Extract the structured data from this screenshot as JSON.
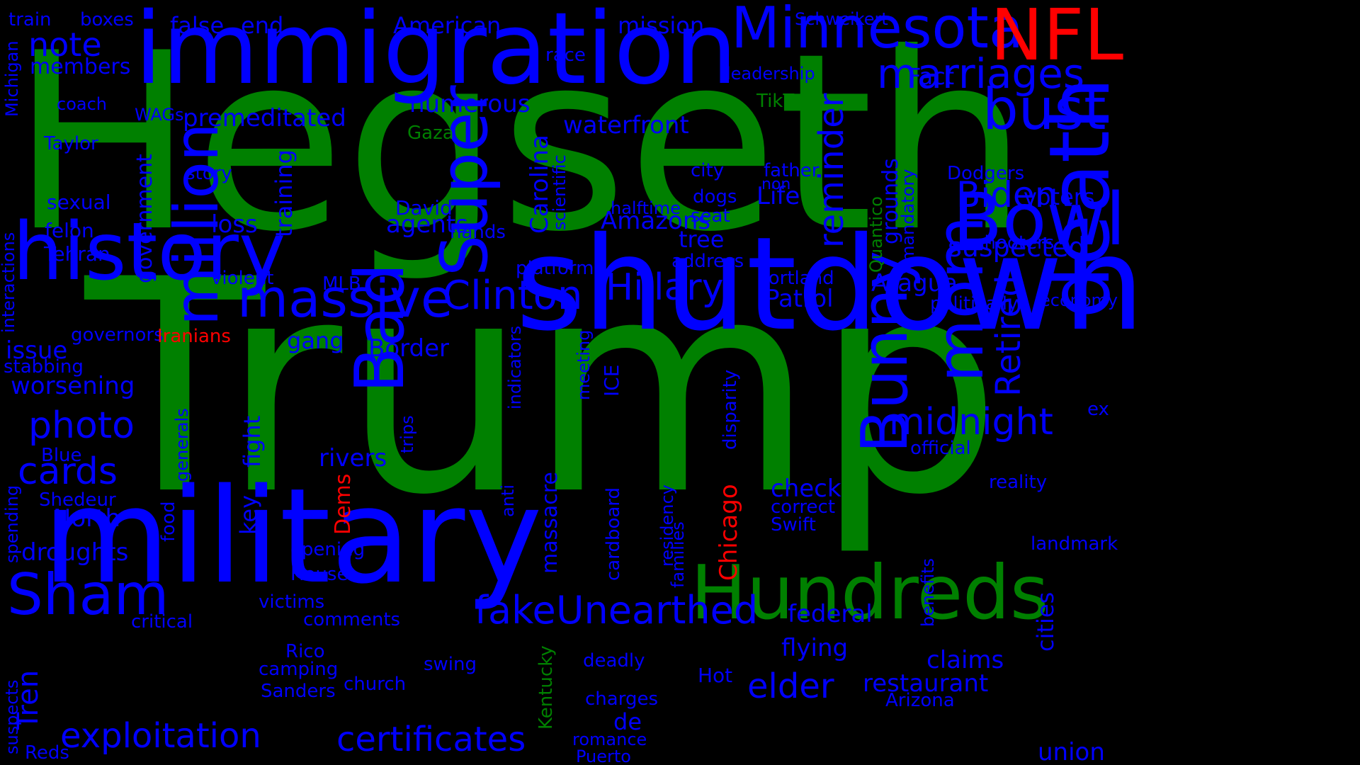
{
  "colors": {
    "background": "#000000",
    "blue": "#0000ff",
    "green": "#008000",
    "red": "#ff0000"
  },
  "words": [
    {
      "id": "word-hegseth",
      "text": "Hegseth",
      "color": "green"
    },
    {
      "id": "word-trump",
      "text": "Trump",
      "color": "green"
    },
    {
      "id": "word-shutdown",
      "text": "shutdown",
      "color": "blue"
    },
    {
      "id": "word-military",
      "text": "military",
      "color": "blue"
    },
    {
      "id": "word-immigration",
      "text": "immigration",
      "color": "blue"
    },
    {
      "id": "word-history",
      "text": "history",
      "color": "blue"
    },
    {
      "id": "word-hundreds",
      "text": "Hundreds",
      "color": "green"
    },
    {
      "id": "word-death",
      "text": "death",
      "color": "blue"
    },
    {
      "id": "word-minnesota",
      "text": "Minnesota",
      "color": "blue"
    },
    {
      "id": "word-nfl",
      "text": "NFL",
      "color": "red"
    },
    {
      "id": "word-bowl",
      "text": "Bowl",
      "color": "blue"
    },
    {
      "id": "word-bust",
      "text": "bust",
      "color": "blue"
    },
    {
      "id": "word-marriages",
      "text": "marriages",
      "color": "blue"
    },
    {
      "id": "word-massive",
      "text": "massive",
      "color": "blue"
    },
    {
      "id": "word-million",
      "text": "million",
      "color": "blue"
    },
    {
      "id": "word-super",
      "text": "Super",
      "color": "blue"
    },
    {
      "id": "word-bad",
      "text": "Bad",
      "color": "blue"
    },
    {
      "id": "word-bunny",
      "text": "Bunny",
      "color": "blue"
    },
    {
      "id": "word-mom",
      "text": "mom",
      "color": "blue"
    },
    {
      "id": "word-sham",
      "text": "Sham",
      "color": "blue"
    },
    {
      "id": "word-clinton",
      "text": "Clinton",
      "color": "blue"
    },
    {
      "id": "word-hillary",
      "text": "Hillary",
      "color": "blue"
    },
    {
      "id": "word-biden",
      "text": "Biden",
      "color": "blue"
    },
    {
      "id": "word-photo",
      "text": "photo",
      "color": "blue"
    },
    {
      "id": "word-cards",
      "text": "cards",
      "color": "blue"
    },
    {
      "id": "word-fake",
      "text": "fake",
      "color": "blue"
    },
    {
      "id": "word-unearthed",
      "text": "Unearthed",
      "color": "blue"
    },
    {
      "id": "word-midnight",
      "text": "midnight",
      "color": "blue"
    },
    {
      "id": "word-exploitation",
      "text": "exploitation",
      "color": "blue"
    },
    {
      "id": "word-certificates",
      "text": "certificates",
      "color": "blue"
    },
    {
      "id": "word-elder",
      "text": "elder",
      "color": "blue"
    },
    {
      "id": "word-retired",
      "text": "Retired",
      "color": "blue"
    },
    {
      "id": "word-reminder",
      "text": "reminder",
      "color": "blue"
    },
    {
      "id": "word-note",
      "text": "note",
      "color": "blue"
    },
    {
      "id": "word-suspected",
      "text": "suspected",
      "color": "blue"
    },
    {
      "id": "word-voters",
      "text": "voters",
      "color": "blue"
    },
    {
      "id": "word-carolina",
      "text": "Carolina",
      "color": "blue"
    },
    {
      "id": "word-agents",
      "text": "agents",
      "color": "blue"
    },
    {
      "id": "word-premeditated",
      "text": "premeditated",
      "color": "blue"
    },
    {
      "id": "word-numerous",
      "text": "numerous",
      "color": "blue"
    },
    {
      "id": "word-waterfront",
      "text": "waterfront",
      "color": "blue"
    },
    {
      "id": "word-mission",
      "text": "mission",
      "color": "blue"
    },
    {
      "id": "word-american",
      "text": "American",
      "color": "blue"
    },
    {
      "id": "word-false",
      "text": "false",
      "color": "blue"
    },
    {
      "id": "word-end",
      "text": "end",
      "color": "blue"
    },
    {
      "id": "word-train",
      "text": "train",
      "color": "blue"
    },
    {
      "id": "word-boxes",
      "text": "boxes",
      "color": "blue"
    },
    {
      "id": "word-schweikert",
      "text": "Schweikert",
      "color": "blue"
    },
    {
      "id": "word-leadership",
      "text": "leadership",
      "color": "blue"
    },
    {
      "id": "word-fact",
      "text": "Fact",
      "color": "blue"
    },
    {
      "id": "word-race",
      "text": "race",
      "color": "blue"
    },
    {
      "id": "word-members",
      "text": "members",
      "color": "blue"
    },
    {
      "id": "word-michigan",
      "text": "Michigan",
      "color": "blue"
    },
    {
      "id": "word-coach",
      "text": "coach",
      "color": "blue"
    },
    {
      "id": "word-wags",
      "text": "WAGs",
      "color": "blue"
    },
    {
      "id": "word-tiktok",
      "text": "TikTok",
      "color": "green"
    },
    {
      "id": "word-gaza",
      "text": "Gaza",
      "color": "green"
    },
    {
      "id": "word-taylor",
      "text": "Taylor",
      "color": "blue"
    },
    {
      "id": "word-government",
      "text": "government",
      "color": "blue"
    },
    {
      "id": "word-training",
      "text": "training",
      "color": "blue"
    },
    {
      "id": "word-story",
      "text": "story",
      "color": "blue"
    },
    {
      "id": "word-scientific",
      "text": "scientific",
      "color": "blue"
    },
    {
      "id": "word-city",
      "text": "city",
      "color": "blue"
    },
    {
      "id": "word-father",
      "text": "father",
      "color": "blue"
    },
    {
      "id": "word-non",
      "text": "non",
      "color": "blue"
    },
    {
      "id": "word-dodgers",
      "text": "Dodgers",
      "color": "blue"
    },
    {
      "id": "word-sexual",
      "text": "sexual",
      "color": "blue"
    },
    {
      "id": "word-david",
      "text": "David",
      "color": "blue"
    },
    {
      "id": "word-dogs",
      "text": "dogs",
      "color": "blue"
    },
    {
      "id": "word-life",
      "text": "Life",
      "color": "blue"
    },
    {
      "id": "word-quantico",
      "text": "Quantico",
      "color": "green"
    },
    {
      "id": "word-grounds",
      "text": "grounds",
      "color": "blue"
    },
    {
      "id": "word-mandatory",
      "text": "mandatory",
      "color": "blue"
    },
    {
      "id": "word-halftime",
      "text": "halftime",
      "color": "blue"
    },
    {
      "id": "word-seat",
      "text": "seat",
      "color": "blue"
    },
    {
      "id": "word-interactions",
      "text": "interactions",
      "color": "blue"
    },
    {
      "id": "word-loss",
      "text": "loss",
      "color": "blue"
    },
    {
      "id": "word-felon",
      "text": "felon",
      "color": "blue"
    },
    {
      "id": "word-hands",
      "text": "hands",
      "color": "blue"
    },
    {
      "id": "word-amazons",
      "text": "Amazons",
      "color": "blue"
    },
    {
      "id": "word-tree",
      "text": "tree",
      "color": "blue"
    },
    {
      "id": "word-shooters",
      "text": "shooters",
      "color": "blue"
    },
    {
      "id": "word-tehran",
      "text": "Tehran",
      "color": "blue"
    },
    {
      "id": "word-address",
      "text": "address",
      "color": "blue"
    },
    {
      "id": "word-platform",
      "text": "platform",
      "color": "blue"
    },
    {
      "id": "word-violent",
      "text": "violent",
      "color": "blue"
    },
    {
      "id": "word-portland",
      "text": "Portland",
      "color": "blue"
    },
    {
      "id": "word-mlb",
      "text": "MLB",
      "color": "blue"
    },
    {
      "id": "word-aragua",
      "text": "Aragua",
      "color": "blue"
    },
    {
      "id": "word-patrol",
      "text": "Patrol",
      "color": "blue"
    },
    {
      "id": "word-politically",
      "text": "politically",
      "color": "blue"
    },
    {
      "id": "word-economy",
      "text": "economy",
      "color": "blue"
    },
    {
      "id": "word-governors",
      "text": "governors",
      "color": "blue"
    },
    {
      "id": "word-iranians",
      "text": "Iranians",
      "color": "red"
    },
    {
      "id": "word-issue",
      "text": "issue",
      "color": "blue"
    },
    {
      "id": "word-gang",
      "text": "gang",
      "color": "blue"
    },
    {
      "id": "word-border",
      "text": "Border",
      "color": "blue"
    },
    {
      "id": "word-indicators",
      "text": "indicators",
      "color": "blue"
    },
    {
      "id": "word-meeting",
      "text": "meeting",
      "color": "blue"
    },
    {
      "id": "word-ice",
      "text": "ICE",
      "color": "blue"
    },
    {
      "id": "word-disparity",
      "text": "disparity",
      "color": "blue"
    },
    {
      "id": "word-stabbing",
      "text": "stabbing",
      "color": "blue"
    },
    {
      "id": "word-worsening",
      "text": "worsening",
      "color": "blue"
    },
    {
      "id": "word-ex",
      "text": "ex",
      "color": "blue"
    },
    {
      "id": "word-generals",
      "text": "generals",
      "color": "blue"
    },
    {
      "id": "word-official",
      "text": "official",
      "color": "blue"
    },
    {
      "id": "word-blue",
      "text": "Blue",
      "color": "blue"
    },
    {
      "id": "word-key",
      "text": "key",
      "color": "blue"
    },
    {
      "id": "word-fight",
      "text": "fight",
      "color": "blue"
    },
    {
      "id": "word-rivers",
      "text": "rivers",
      "color": "blue"
    },
    {
      "id": "word-trips",
      "text": "trips",
      "color": "blue"
    },
    {
      "id": "word-reality",
      "text": "reality",
      "color": "blue"
    },
    {
      "id": "word-check",
      "text": "check",
      "color": "blue"
    },
    {
      "id": "word-correct",
      "text": "correct",
      "color": "blue"
    },
    {
      "id": "word-dems",
      "text": "Dems",
      "color": "red"
    },
    {
      "id": "word-shedeur",
      "text": "Shedeur",
      "color": "blue"
    },
    {
      "id": "word-spending",
      "text": "spending",
      "color": "blue"
    },
    {
      "id": "word-north",
      "text": "North",
      "color": "blue"
    },
    {
      "id": "word-food",
      "text": "food",
      "color": "blue"
    },
    {
      "id": "word-anti",
      "text": "anti",
      "color": "blue"
    },
    {
      "id": "word-massacre",
      "text": "massacre",
      "color": "blue"
    },
    {
      "id": "word-cardboard",
      "text": "cardboard",
      "color": "blue"
    },
    {
      "id": "word-residency",
      "text": "residency",
      "color": "blue"
    },
    {
      "id": "word-families",
      "text": "families",
      "color": "blue"
    },
    {
      "id": "word-chicago",
      "text": "Chicago",
      "color": "red"
    },
    {
      "id": "word-swift",
      "text": "Swift",
      "color": "blue"
    },
    {
      "id": "word-landmark",
      "text": "landmark",
      "color": "blue"
    },
    {
      "id": "word-droughts",
      "text": "droughts",
      "color": "blue"
    },
    {
      "id": "word-opening",
      "text": "opening",
      "color": "blue"
    },
    {
      "id": "word-house",
      "text": "House",
      "color": "blue"
    },
    {
      "id": "word-cities",
      "text": "cities",
      "color": "blue"
    },
    {
      "id": "word-benefits",
      "text": "benefits",
      "color": "blue"
    },
    {
      "id": "word-victims",
      "text": "victims",
      "color": "blue"
    },
    {
      "id": "word-critical",
      "text": "critical",
      "color": "blue"
    },
    {
      "id": "word-comments",
      "text": "comments",
      "color": "blue"
    },
    {
      "id": "word-federal",
      "text": "federal",
      "color": "blue"
    },
    {
      "id": "word-flying",
      "text": "flying",
      "color": "blue"
    },
    {
      "id": "word-claims",
      "text": "claims",
      "color": "blue"
    },
    {
      "id": "word-rico",
      "text": "Rico",
      "color": "blue"
    },
    {
      "id": "word-camping",
      "text": "camping",
      "color": "blue"
    },
    {
      "id": "word-swing",
      "text": "swing",
      "color": "blue"
    },
    {
      "id": "word-kentucky",
      "text": "Kentucky",
      "color": "green"
    },
    {
      "id": "word-deadly",
      "text": "deadly",
      "color": "blue"
    },
    {
      "id": "word-hot",
      "text": "Hot",
      "color": "blue"
    },
    {
      "id": "word-restaurant",
      "text": "restaurant",
      "color": "blue"
    },
    {
      "id": "word-sanders",
      "text": "Sanders",
      "color": "blue"
    },
    {
      "id": "word-church",
      "text": "church",
      "color": "blue"
    },
    {
      "id": "word-charges",
      "text": "charges",
      "color": "blue"
    },
    {
      "id": "word-arizona",
      "text": "Arizona",
      "color": "blue"
    },
    {
      "id": "word-tren",
      "text": "Tren",
      "color": "blue"
    },
    {
      "id": "word-suspects",
      "text": "suspects",
      "color": "blue"
    },
    {
      "id": "word-de",
      "text": "de",
      "color": "blue"
    },
    {
      "id": "word-romance",
      "text": "romance",
      "color": "blue"
    },
    {
      "id": "word-puerto",
      "text": "Puerto",
      "color": "blue"
    },
    {
      "id": "word-union",
      "text": "union",
      "color": "blue"
    },
    {
      "id": "word-reds",
      "text": "Reds",
      "color": "blue"
    }
  ]
}
